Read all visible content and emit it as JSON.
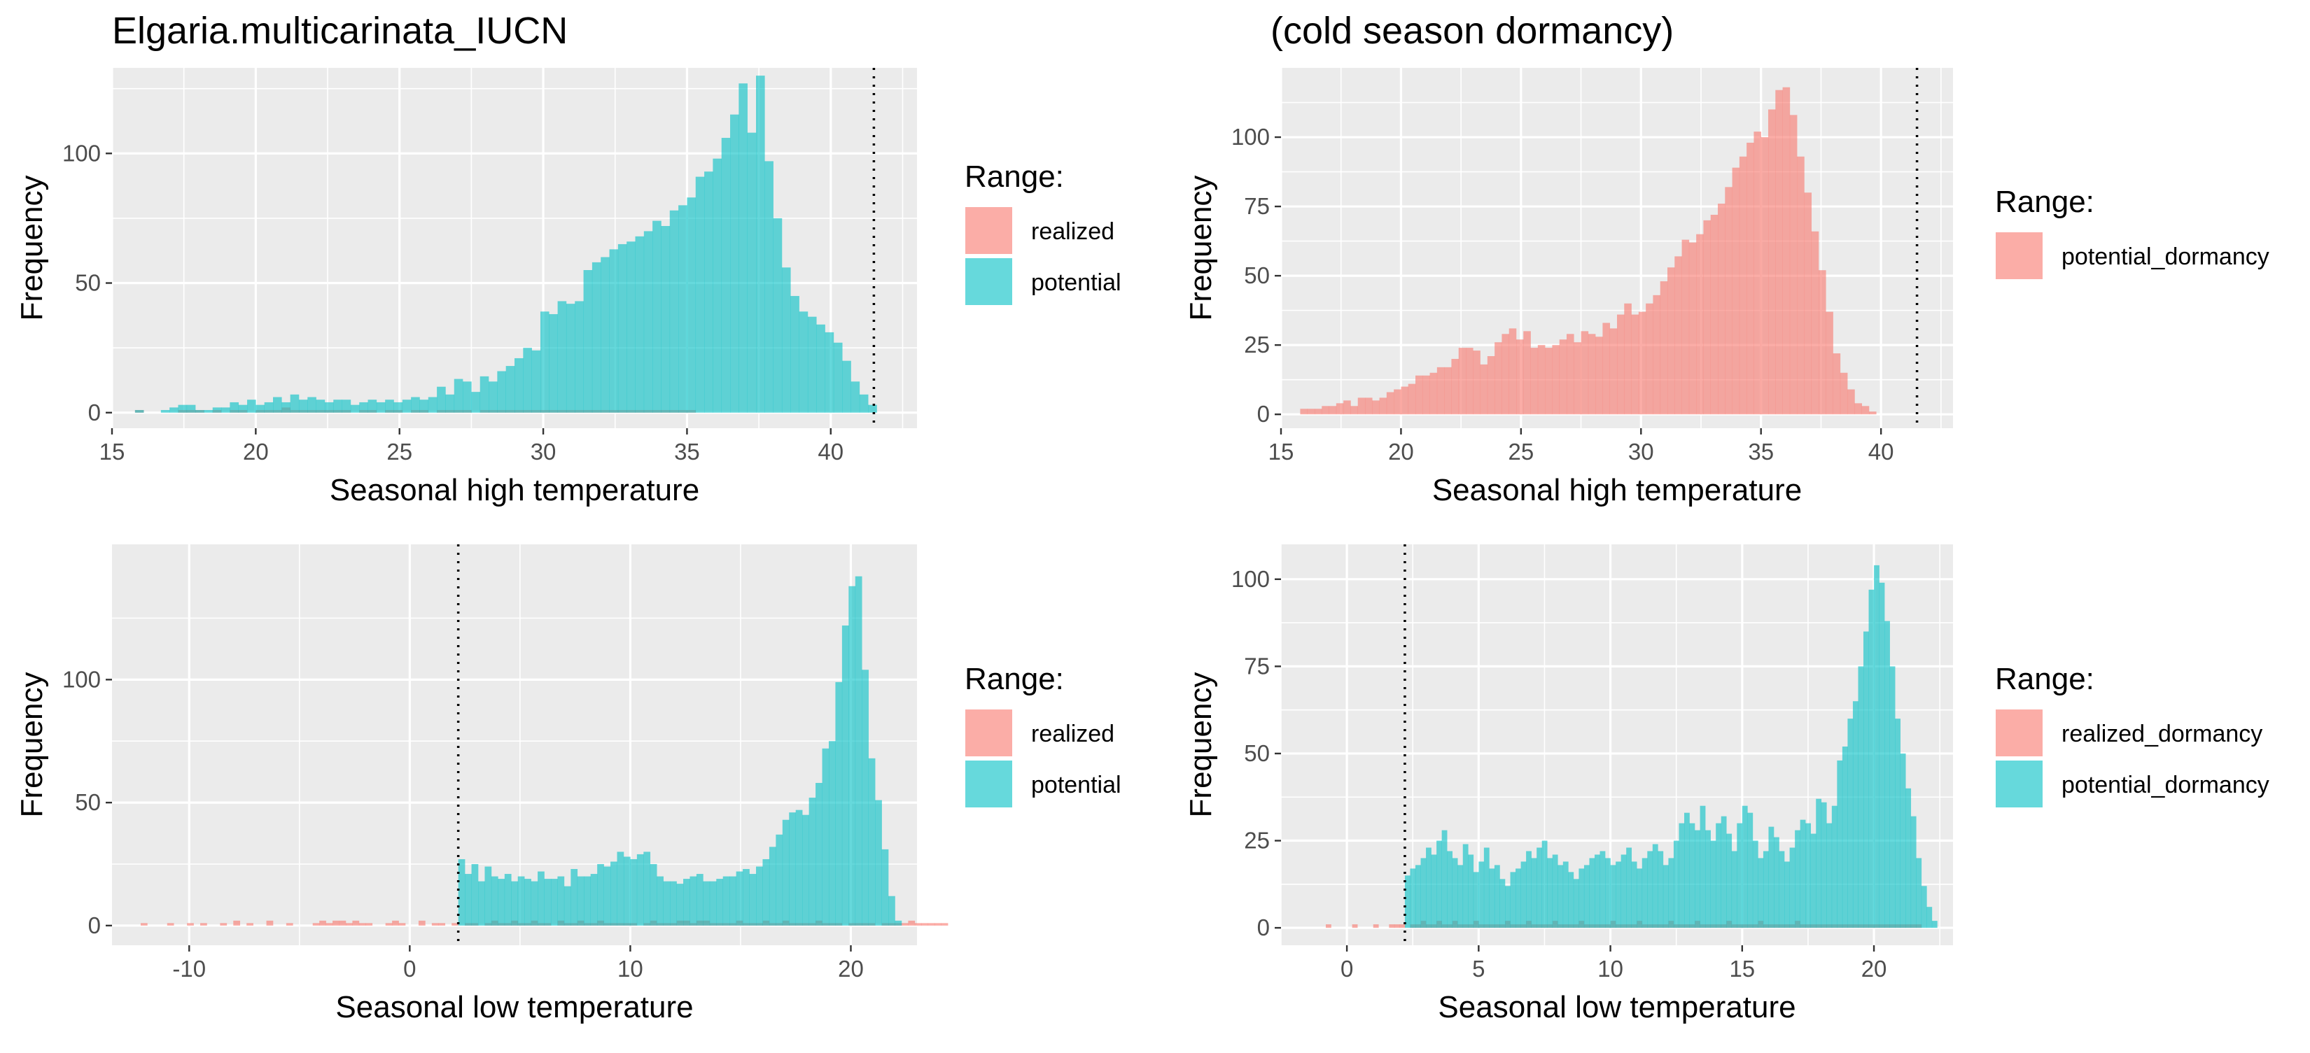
{
  "figure_title": "Elgaria.multicarinata_IUCN",
  "colors": {
    "realized": "#F8766D",
    "potential": "#00BFC4",
    "panel_bg": "#EBEBEB",
    "grid": "#FFFFFF"
  },
  "chart_data": [
    {
      "type": "bar",
      "title": "Elgaria.multicarinata_IUCN",
      "xlabel": "Seasonal high temperature",
      "ylabel": "Frequency",
      "xlim": [
        15,
        43
      ],
      "ylim": [
        -6,
        133
      ],
      "xticks": [
        15,
        20,
        25,
        30,
        35,
        40
      ],
      "yticks": [
        0,
        50,
        100
      ],
      "vline": 41.5,
      "bin_start": 15.8,
      "bin_width": 0.3,
      "legend": {
        "title": "Range:",
        "labels": [
          "realized",
          "potential"
        ]
      },
      "series": [
        {
          "name": "realized",
          "color_key": "realized",
          "start": 15.8,
          "values": [
            1,
            0,
            0,
            0,
            0,
            1,
            1,
            1,
            0,
            1,
            0,
            1,
            1,
            0,
            1,
            1,
            1,
            2,
            1,
            1,
            1,
            1,
            1,
            1,
            1,
            0,
            1,
            1,
            0,
            1,
            1,
            0,
            1,
            1,
            0,
            1,
            1,
            1,
            1,
            0,
            1,
            1,
            1,
            1,
            1,
            1,
            1,
            1,
            1,
            1,
            1,
            1,
            1,
            1,
            1,
            1,
            1,
            1,
            1,
            1,
            1,
            1,
            1,
            1,
            1,
            0
          ]
        },
        {
          "name": "potential",
          "color_key": "potential",
          "start": 15.8,
          "values": [
            1,
            0,
            0,
            1,
            2,
            3,
            3,
            1,
            1,
            2,
            2,
            4,
            3,
            5,
            3,
            4,
            6,
            4,
            7,
            5,
            6,
            5,
            4,
            5,
            5,
            3,
            4,
            5,
            4,
            5,
            4,
            5,
            6,
            5,
            6,
            10,
            7,
            13,
            12,
            8,
            14,
            12,
            16,
            18,
            21,
            25,
            24,
            39,
            38,
            43,
            42,
            43,
            55,
            58,
            60,
            63,
            65,
            66,
            68,
            70,
            74,
            72,
            78,
            80,
            83,
            91,
            93,
            98,
            106,
            115,
            127,
            108,
            130,
            97,
            75,
            56,
            45,
            39,
            37,
            34,
            31,
            27,
            20,
            12,
            7,
            3
          ]
        }
      ]
    },
    {
      "type": "bar",
      "title": "(cold season dormancy)",
      "xlabel": "Seasonal high temperature",
      "ylabel": "Frequency",
      "xlim": [
        15,
        43
      ],
      "ylim": [
        -5,
        125
      ],
      "xticks": [
        15,
        20,
        25,
        30,
        35,
        40
      ],
      "yticks": [
        0,
        25,
        50,
        75,
        100
      ],
      "vline": 41.5,
      "bin_start": 15.8,
      "bin_width": 0.3,
      "legend": {
        "title": "Range:",
        "labels": [
          "potential_dormancy"
        ]
      },
      "series": [
        {
          "name": "potential_dormancy",
          "color_key": "realized",
          "start": 15.8,
          "values": [
            2,
            2,
            2,
            3,
            3,
            4,
            5,
            3,
            6,
            6,
            5,
            6,
            8,
            9,
            10,
            11,
            14,
            14,
            15,
            17,
            17,
            20,
            24,
            24,
            23,
            18,
            21,
            26,
            29,
            31,
            27,
            30,
            24,
            25,
            24,
            25,
            27,
            29,
            26,
            30,
            29,
            28,
            33,
            31,
            36,
            40,
            36,
            37,
            40,
            43,
            48,
            53,
            57,
            63,
            62,
            65,
            70,
            72,
            76,
            82,
            89,
            93,
            98,
            102,
            100,
            110,
            117,
            118,
            108,
            93,
            80,
            66,
            52,
            37,
            22,
            15,
            9,
            4,
            3,
            1
          ]
        }
      ]
    },
    {
      "type": "bar",
      "title": "",
      "xlabel": "Seasonal low temperature",
      "ylabel": "Frequency",
      "xlim": [
        -13.5,
        23
      ],
      "ylim": [
        -8,
        155
      ],
      "xticks": [
        -10,
        0,
        10,
        20
      ],
      "yticks": [
        0,
        50,
        100
      ],
      "vline": 2.2,
      "bin_start": -12.2,
      "bin_width": 0.3,
      "legend": {
        "title": "Range:",
        "labels": [
          "realized",
          "potential"
        ]
      },
      "series": [
        {
          "name": "realized",
          "color_key": "realized",
          "start": -12.2,
          "values": [
            1,
            0,
            0,
            0,
            1,
            0,
            0,
            1,
            0,
            1,
            0,
            0,
            1,
            0,
            2,
            0,
            1,
            0,
            0,
            2,
            0,
            0,
            1,
            0,
            0,
            0,
            1,
            2,
            1,
            2,
            2,
            1,
            2,
            1,
            1,
            0,
            0,
            1,
            2,
            1,
            0,
            0,
            2,
            0,
            1,
            1,
            0,
            1,
            0,
            1,
            1,
            0,
            1,
            2,
            1,
            1,
            2,
            1,
            1,
            2,
            1,
            1,
            0,
            2,
            1,
            1,
            2,
            1,
            1,
            2,
            1,
            1,
            1,
            1,
            1,
            0,
            1,
            2,
            1,
            1,
            1,
            2,
            2,
            1,
            2,
            2,
            1,
            1,
            1,
            1,
            2,
            1,
            1,
            1,
            2,
            1,
            1,
            2,
            1,
            1,
            1,
            1,
            2,
            1,
            1,
            1,
            0,
            1,
            1,
            1,
            1,
            0,
            1,
            1,
            1,
            1,
            2,
            1,
            1,
            1,
            1,
            1,
            0
          ]
        },
        {
          "name": "potential",
          "color_key": "potential",
          "start": 2.2,
          "values": [
            27,
            21,
            25,
            18,
            24,
            20,
            19,
            21,
            18,
            20,
            19,
            18,
            22,
            19,
            19,
            20,
            16,
            23,
            20,
            20,
            21,
            25,
            24,
            26,
            30,
            28,
            27,
            29,
            30,
            25,
            20,
            18,
            18,
            17,
            19,
            20,
            21,
            18,
            18,
            19,
            20,
            20,
            22,
            23,
            21,
            24,
            27,
            32,
            37,
            43,
            46,
            47,
            45,
            52,
            58,
            72,
            75,
            99,
            122,
            138,
            142,
            104,
            68,
            51,
            31,
            12,
            2
          ]
        }
      ]
    },
    {
      "type": "bar",
      "title": "",
      "xlabel": "Seasonal low temperature",
      "ylabel": "Frequency",
      "xlim": [
        -2.5,
        23
      ],
      "ylim": [
        -5,
        110
      ],
      "xticks": [
        0,
        5,
        10,
        15,
        20
      ],
      "yticks": [
        0,
        25,
        50,
        75,
        100
      ],
      "vline": 2.2,
      "bin_start": -0.8,
      "bin_width": 0.2,
      "legend": {
        "title": "Range:",
        "labels": [
          "realized_dormancy",
          "potential_dormancy"
        ]
      },
      "series": [
        {
          "name": "realized_dormancy",
          "color_key": "realized",
          "start": -0.8,
          "values": [
            1,
            0,
            0,
            0,
            0,
            1,
            0,
            0,
            0,
            1,
            0,
            0,
            1,
            1,
            1,
            0,
            1,
            1,
            2,
            1,
            1,
            2,
            1,
            1,
            2,
            1,
            1,
            1,
            2,
            1,
            1,
            1,
            1,
            1,
            2,
            1,
            1,
            1,
            2,
            1,
            1,
            1,
            1,
            2,
            1,
            1,
            1,
            1,
            2,
            1,
            1,
            1,
            1,
            1,
            2,
            1,
            1,
            1,
            1,
            2,
            1,
            1,
            1,
            1,
            1,
            2,
            1,
            1,
            1,
            1,
            2,
            1,
            1,
            1,
            1,
            1,
            2,
            1,
            1,
            1,
            1,
            1,
            2,
            1,
            1,
            1,
            1,
            1,
            1,
            2,
            1,
            1,
            1,
            1,
            1,
            1,
            1,
            1,
            1,
            1,
            1,
            1,
            1,
            1,
            1,
            1,
            1,
            1,
            1,
            1,
            1,
            1,
            1
          ]
        },
        {
          "name": "potential_dormancy",
          "color_key": "potential",
          "start": 2.2,
          "values": [
            15,
            17,
            18,
            20,
            23,
            21,
            25,
            28,
            22,
            20,
            18,
            24,
            21,
            16,
            19,
            23,
            17,
            18,
            14,
            12,
            16,
            17,
            19,
            22,
            20,
            23,
            25,
            20,
            21,
            18,
            19,
            16,
            14,
            17,
            18,
            20,
            21,
            22,
            20,
            18,
            19,
            21,
            23,
            19,
            17,
            20,
            22,
            24,
            22,
            18,
            20,
            25,
            30,
            33,
            30,
            28,
            35,
            28,
            25,
            30,
            32,
            27,
            22,
            30,
            35,
            33,
            25,
            20,
            22,
            29,
            26,
            22,
            19,
            23,
            28,
            31,
            30,
            27,
            37,
            36,
            30,
            35,
            48,
            52,
            60,
            65,
            75,
            85,
            97,
            104,
            99,
            88,
            75,
            60,
            50,
            40,
            32,
            20,
            12,
            6,
            2
          ]
        }
      ]
    }
  ]
}
